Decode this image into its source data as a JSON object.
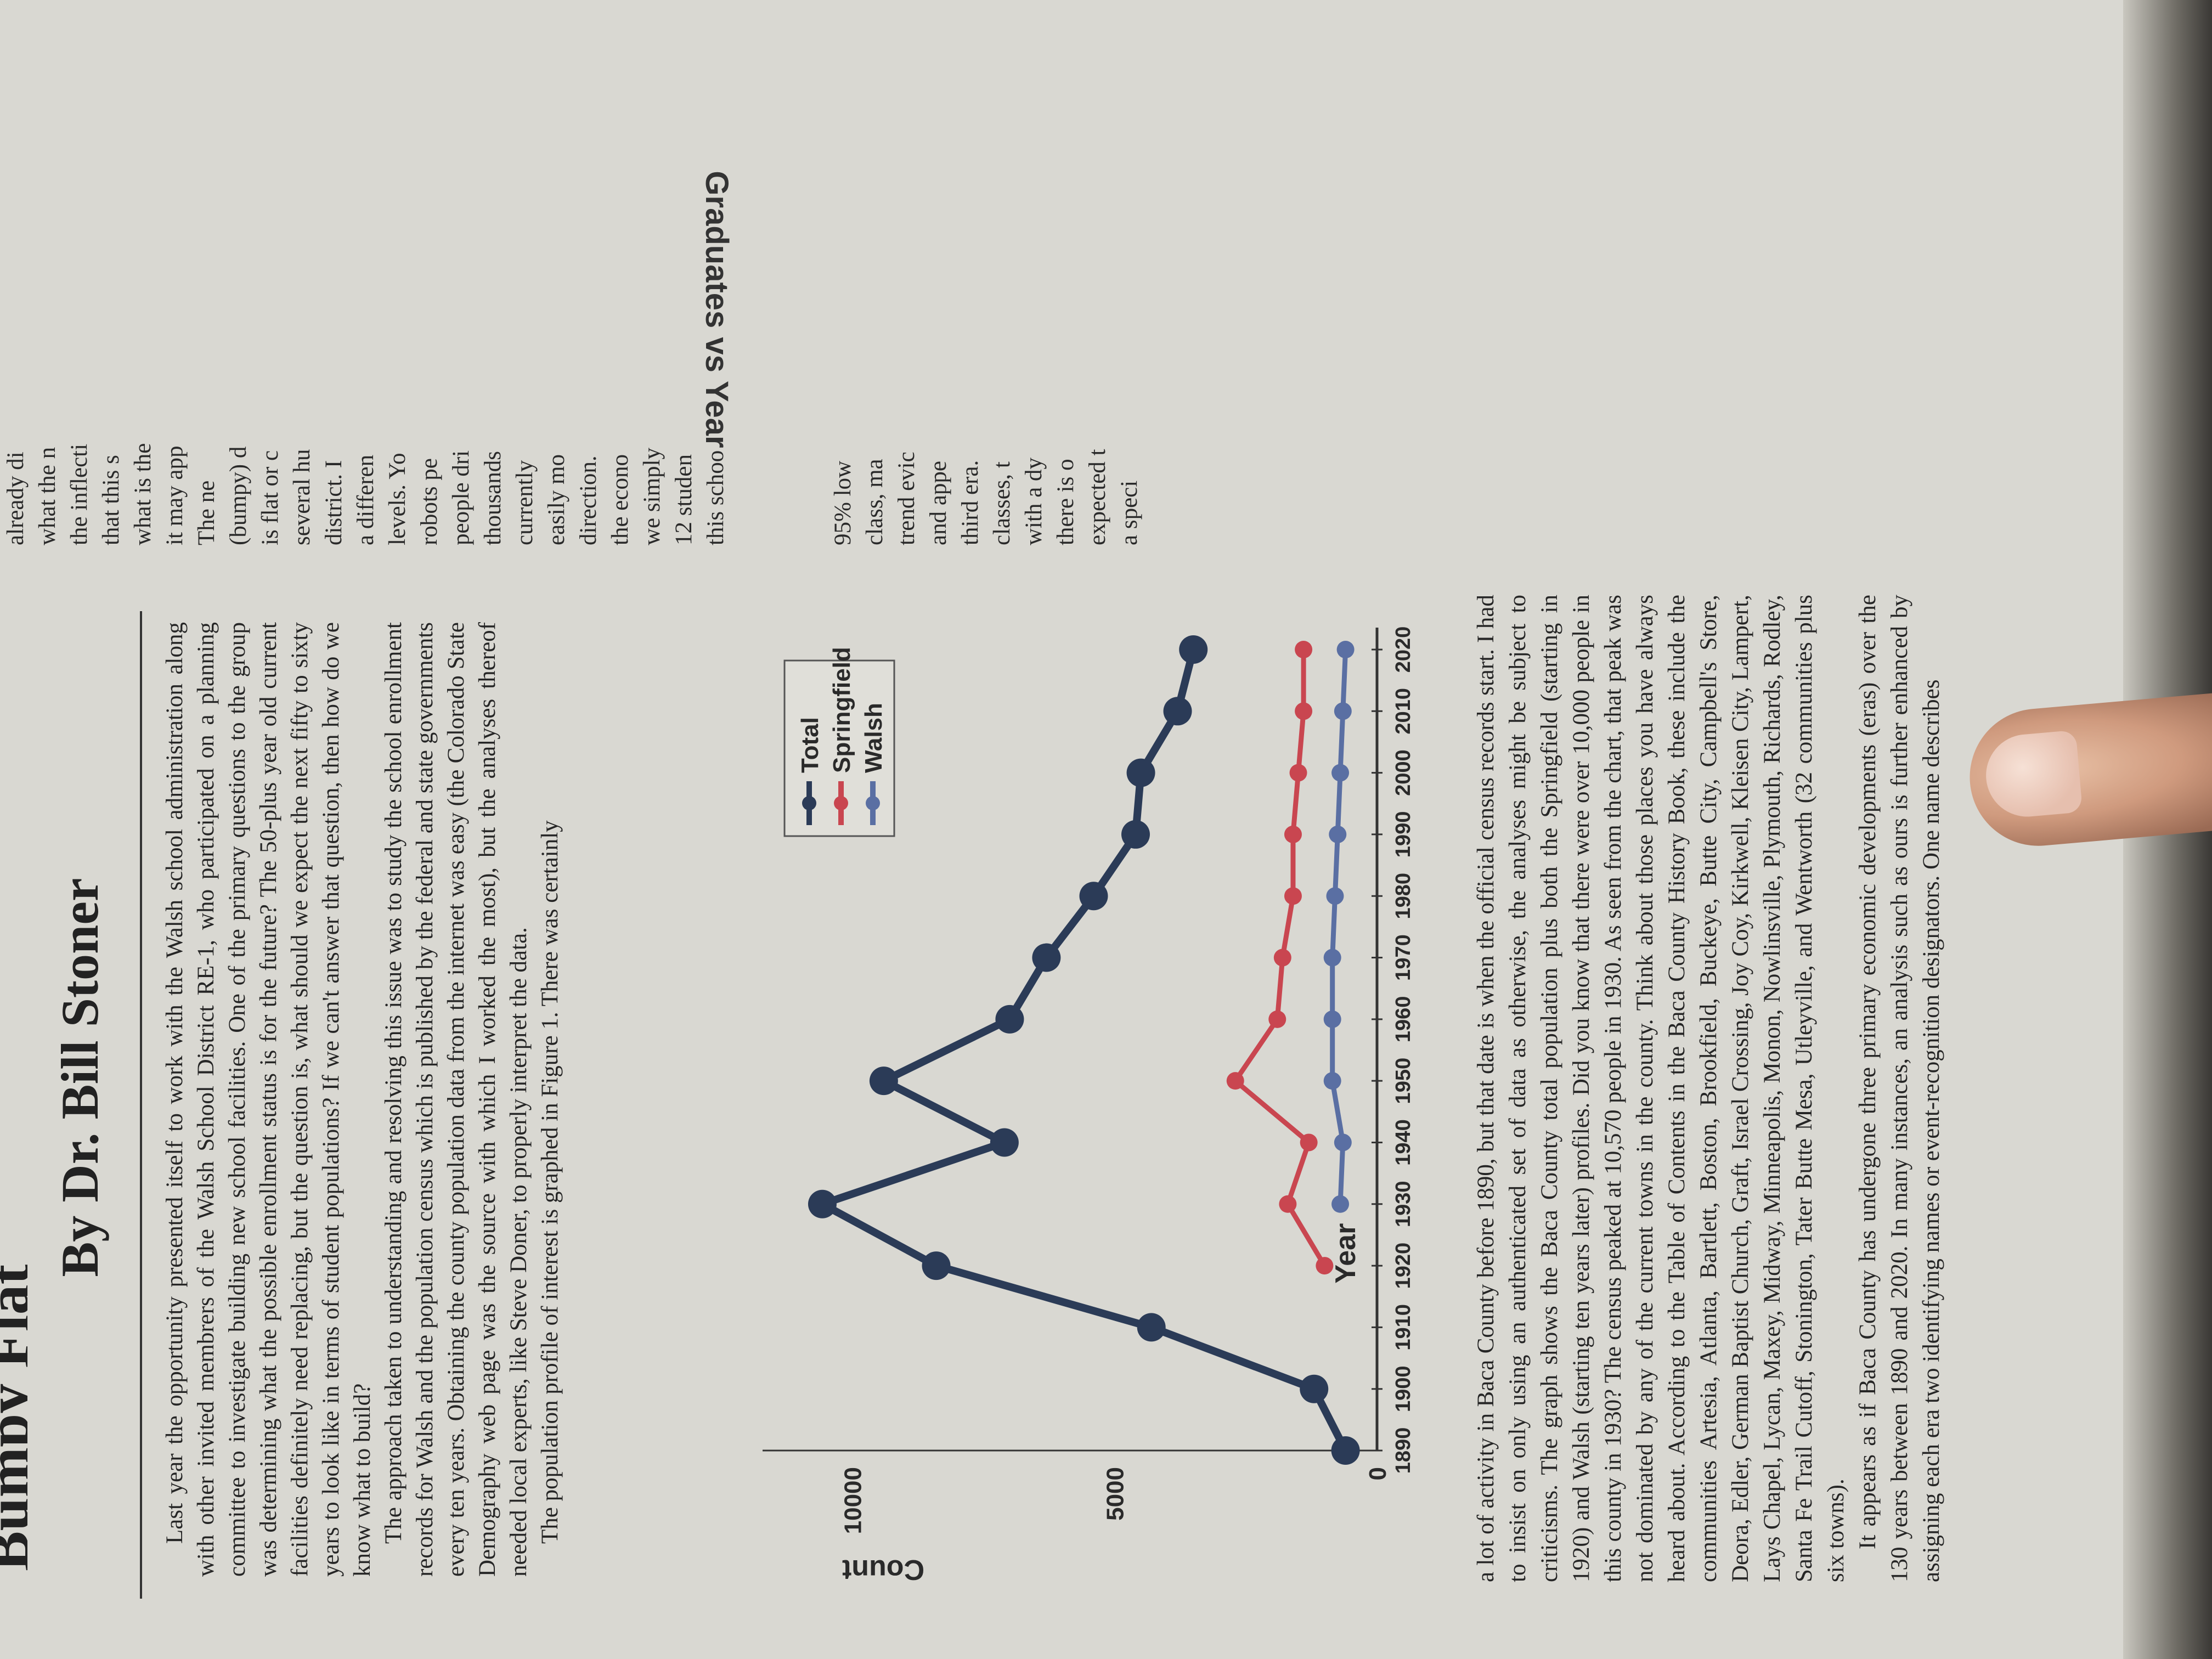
{
  "article": {
    "kicker": "Bumpy Flat",
    "byline": "By Dr. Bill Stoner",
    "intro_paragraphs": [
      "Last year the opportunity presented itself to work with the Walsh school administration along with other invited membrers of the Walsh School District RE-1, who participated on a planning committee to investigate building new school facilities. One of the primary questions to the group was determining what the possible enrollment status is for the future? The 50-plus year old current facilities definitely need replacing, but the question is, what should we expect the next fifty to sixty years to look like in terms of student populations? If we can't answer that question, then how do we know what to build?",
      "The approach taken to understanding and resolving this issue was to study the school enrollment records for Walsh and the population census which is published by the federal and state governments every ten years. Obtaining the county population data from the internet was easy (the Colorado State Demography web page was the source with which I worked the most), but the analyses thereof needed local experts, like Steve Doner, to properly interpret the data.",
      "The population profile of interest is graphed in Figure 1. There was certainly"
    ],
    "lower_paragraphs": [
      "a lot of activity in Baca County before 1890, but that date is when the official census records start. I had to insist on only using an authenticated set of data as otherwise, the analyses might be subject to criticisms. The graph shows the Baca County total population plus both the Springfield (starting in 1920) and Walsh (starting ten years later) profiles. Did you know that there were over 10,000 people in this county in 1930? The census peaked at 10,570 people in 1930. As seen from the chart, that peak was not dominated by any of the current towns in the county. Think about those places you have always heard about. According to the Table of Contents in the Baca County History Book, these include the communities Artesia, Atlanta, Bartlett, Boston, Brookfield, Buckeye, Butte City, Campbell's Store, Deora, Edler, German Baptist Church, Graft, Israel Crossing, Joy Coy, Kirkwell, Kleisen City, Lampert, Lays Chapel, Lycan, Maxey, Midway, Minneapolis, Monon, Nowlinsville, Plymouth, Richards, Rodley, Santa Fe Trail Cutoff, Stonington, Tater Butte Mesa, Utleyville, and Wentworth (32 communities plus six towns).",
      "It appears as if Baca County has undergone three primary economic developments (eras) over the 130 years between 1890 and 2020. In many instances, an analysis such as ours is further enhanced by assigning each era two identifying names or event-recognition designators. One name describes"
    ],
    "right_column_lines": [
      "already di",
      "what the n",
      "the inflecti",
      "that this s",
      "what is the",
      "it may app",
      "The ne",
      "(bumpy) d",
      "is flat or c",
      "several hu",
      "district. I",
      "a differen",
      "levels. Yo",
      "robots pe",
      "people dri",
      "thousands",
      "currently",
      "easily mo",
      "direction.",
      "the econo",
      "we simply",
      "12 studen",
      "this schoo",
      "",
      "",
      "",
      "95% low",
      "class, ma",
      "trend evic",
      "and appe",
      "third era.",
      "classes, t",
      "with a dy",
      "there is o",
      "expected t",
      "a speci"
    ],
    "right_column_heading": "Graduates vs Year"
  },
  "chart_data": {
    "type": "line",
    "ylabel": "Count",
    "xlabel": "Year",
    "y_ticks": [
      "0",
      "5000",
      "10000"
    ],
    "x_ticks": [
      "1890",
      "1900",
      "1910",
      "1920",
      "1930",
      "1940",
      "1950",
      "1960",
      "1970",
      "1980",
      "1990",
      "2000",
      "2010",
      "2020"
    ],
    "ylim": [
      0,
      11500
    ],
    "xlim": [
      1890,
      2020
    ],
    "legend": "top-right",
    "grid": false,
    "series": [
      {
        "name": "Total",
        "color": "#2b3b57",
        "x": [
          1890,
          1900,
          1910,
          1920,
          1930,
          1940,
          1950,
          1960,
          1970,
          1980,
          1990,
          2000,
          2010,
          2020
        ],
        "values": [
          600,
          1200,
          4300,
          8400,
          10570,
          7100,
          9400,
          7000,
          6300,
          5400,
          4600,
          4500,
          3800,
          3500
        ]
      },
      {
        "name": "Springfield",
        "color": "#c94650",
        "x": [
          1920,
          1930,
          1940,
          1950,
          1960,
          1970,
          1980,
          1990,
          2000,
          2010,
          2020
        ],
        "values": [
          1000,
          1700,
          1300,
          2700,
          1900,
          1800,
          1600,
          1600,
          1500,
          1400,
          1400
        ]
      },
      {
        "name": "Walsh",
        "color": "#5a6fa3",
        "x": [
          1930,
          1940,
          1950,
          1960,
          1970,
          1980,
          1990,
          2000,
          2010,
          2020
        ],
        "values": [
          700,
          650,
          850,
          850,
          850,
          800,
          750,
          700,
          650,
          600
        ]
      }
    ]
  }
}
